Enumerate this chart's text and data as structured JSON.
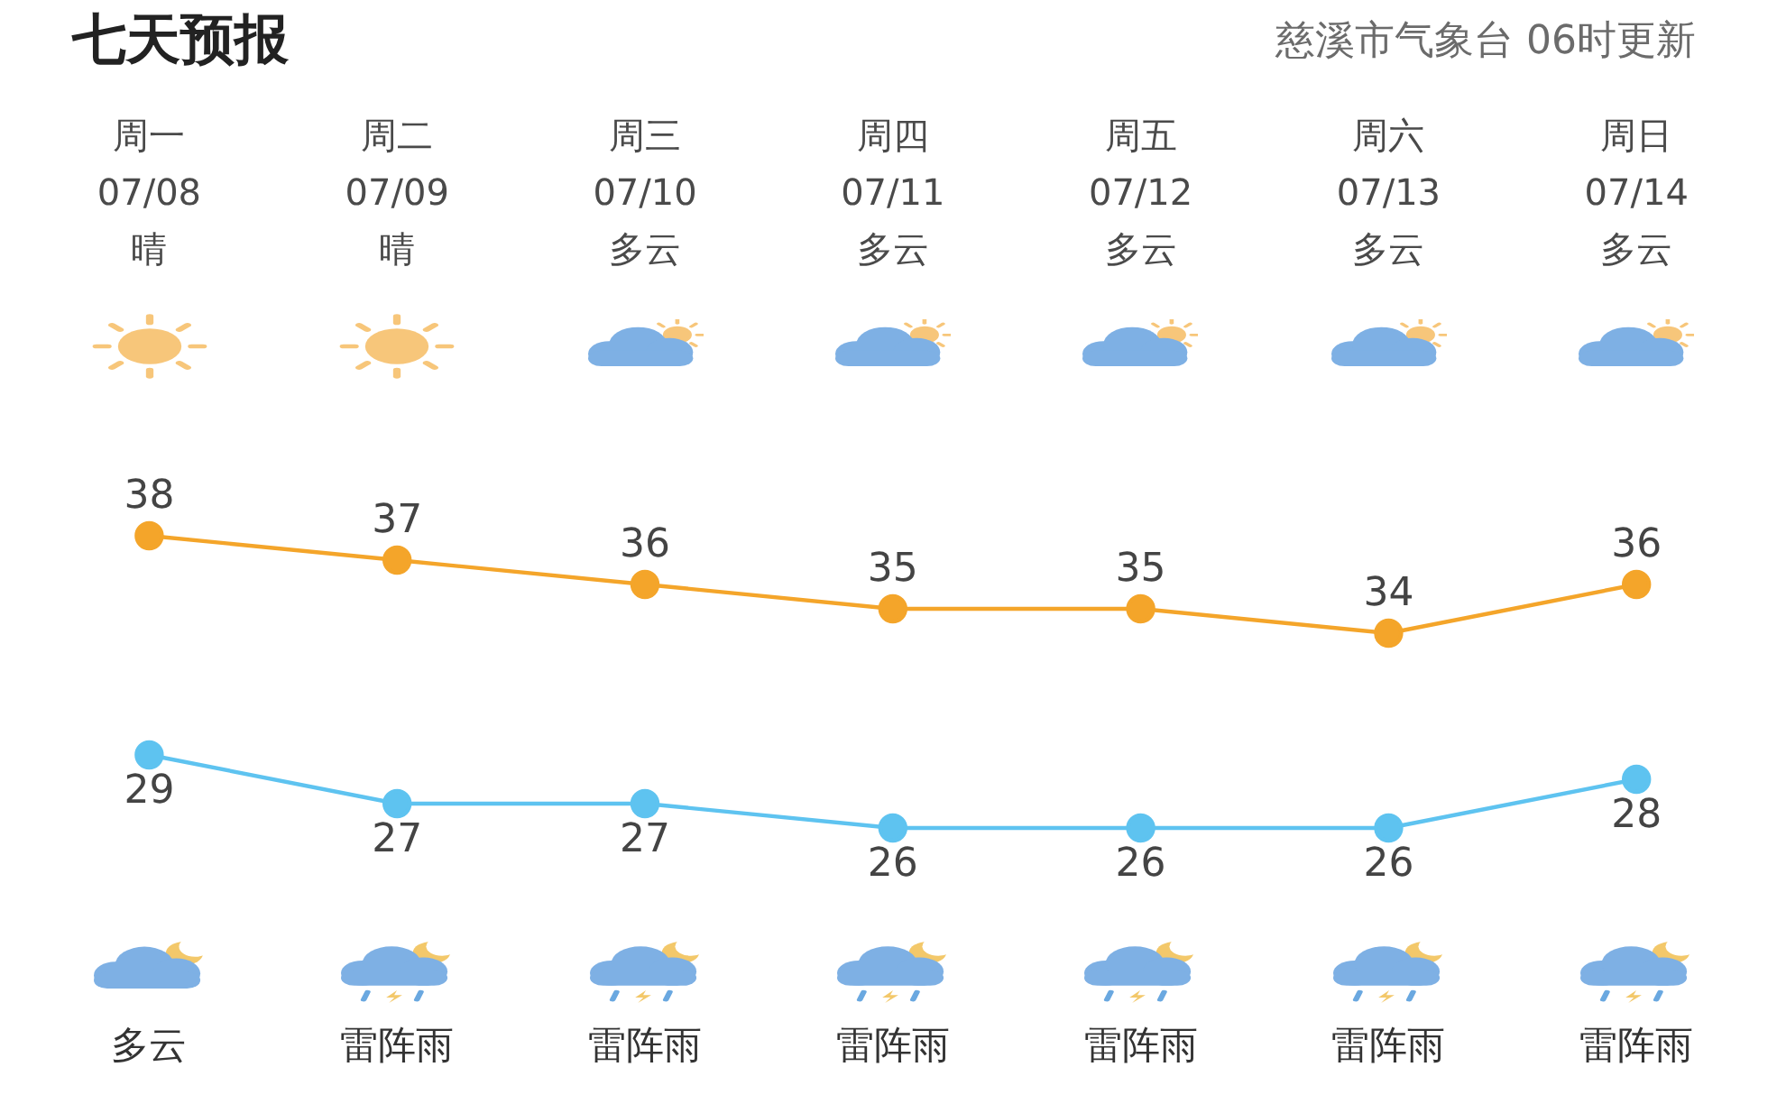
{
  "chart_data": {
    "type": "line",
    "title": "七天预报",
    "subtitle": "慈溪市气象台 06时更新",
    "categories": [
      "周一\n07/08\n晴",
      "周二\n07/09\n晴",
      "周三\n07/10\n多云",
      "周四\n07/11\n多云",
      "周五\n07/12\n多云",
      "周六\n07/13\n多云",
      "周日\n07/14\n多云"
    ],
    "series": [
      {
        "color": "#f4a52a",
        "values": [
          38,
          37,
          36,
          35,
          35,
          34,
          36
        ]
      },
      {
        "color": "#5ec3f0",
        "values": [
          29,
          27,
          27,
          26,
          26,
          26,
          28
        ]
      }
    ],
    "data_labels": true,
    "marker": "circle",
    "tick_labels": "x",
    "annotations": [
      "多云",
      "雷阵雨",
      "雷阵雨",
      "雷阵雨",
      "雷阵雨",
      "雷阵雨",
      "雷阵雨"
    ]
  }
}
